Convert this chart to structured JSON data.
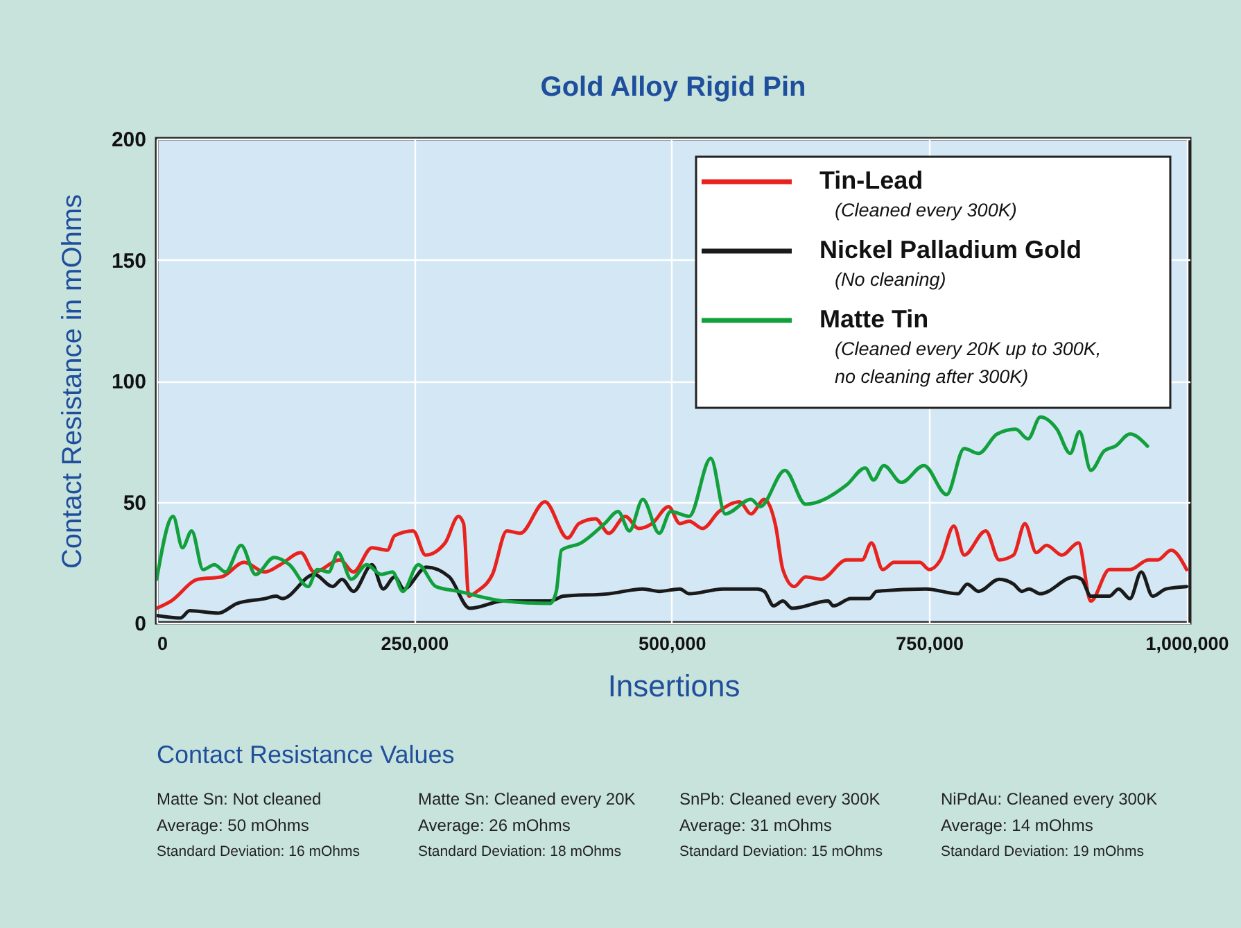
{
  "chart_data": {
    "type": "line",
    "title": "Gold Alloy Rigid Pin",
    "xlabel": "Insertions",
    "ylabel": "Contact Resistance in mOhms",
    "x": [
      0,
      14000,
      40000,
      63000,
      85000,
      105000,
      120000,
      140000,
      153000,
      178000,
      191000,
      209000,
      224000,
      231000,
      249000,
      261000,
      280000,
      293000,
      298000,
      303000,
      311000,
      326000,
      340000,
      353000,
      377000,
      399000,
      410000,
      426000,
      439000,
      455000,
      468000,
      481000,
      497000,
      508000,
      517000,
      530000,
      546000,
      566000,
      577000,
      590000,
      601000,
      608000,
      619000,
      630000,
      645000,
      670000,
      685000,
      694000,
      705000,
      716000,
      741000,
      750000,
      761000,
      774000,
      784000,
      805000,
      818000,
      832000,
      843000,
      854000,
      864000,
      879000,
      895000,
      907000,
      925000,
      945000,
      963000,
      972000,
      985000,
      1000000
    ],
    "series": [
      {
        "name": "Tin-Lead",
        "color": "#e8231e",
        "values": [
          6,
          9,
          18,
          19,
          25,
          21,
          24,
          29,
          21,
          26,
          21,
          31,
          30,
          36,
          38,
          28,
          33,
          44,
          41,
          11,
          13,
          20,
          38,
          37,
          50,
          35,
          41,
          43,
          37,
          44,
          39,
          41,
          48,
          41,
          42,
          39,
          46,
          50,
          45,
          51,
          40,
          22,
          15,
          19,
          18,
          26,
          26,
          33,
          22,
          25,
          25,
          22,
          26,
          40,
          28,
          38,
          26,
          28,
          41,
          29,
          32,
          28,
          33,
          9,
          22,
          22,
          26,
          26,
          30,
          22
        ]
      },
      {
        "name": "Nickel Palladium Gold",
        "color": "#1a1a1a",
        "x": [
          0,
          23000,
          32000,
          60000,
          78000,
          105000,
          116000,
          122000,
          153000,
          171000,
          180000,
          191000,
          209000,
          220000,
          231000,
          240000,
          262000,
          284000,
          304000,
          337000,
          382000,
          395000,
          439000,
          472000,
          488000,
          508000,
          517000,
          550000,
          583000,
          590000,
          599000,
          608000,
          617000,
          652000,
          657000,
          674000,
          692000,
          699000,
          747000,
          778000,
          787000,
          798000,
          818000,
          832000,
          840000,
          847000,
          858000,
          891000,
          898000,
          907000,
          925000,
          934000,
          945000,
          956000,
          967000,
          980000,
          1000000
        ],
        "values": [
          3,
          2,
          5,
          4,
          8,
          10,
          11,
          10,
          20,
          15,
          18,
          13,
          24,
          14,
          19,
          14,
          23,
          19,
          6,
          9,
          9,
          11,
          12,
          14,
          13,
          14,
          12,
          14,
          14,
          13,
          7,
          9,
          6,
          9,
          7,
          10,
          10,
          13,
          14,
          12,
          16,
          13,
          18,
          16,
          13,
          14,
          12,
          19,
          18,
          11,
          11,
          14,
          10,
          21,
          11,
          14,
          15
        ]
      },
      {
        "name": "Matte Tin",
        "color": "#12a03c",
        "x": [
          0,
          16000,
          25000,
          34000,
          45000,
          56000,
          67000,
          82000,
          96000,
          114000,
          129000,
          147000,
          156000,
          167000,
          176000,
          189000,
          204000,
          218000,
          229000,
          239000,
          254000,
          271000,
          293000,
          337000,
          382000,
          388000,
          393000,
          412000,
          435000,
          448000,
          459000,
          472000,
          488000,
          499000,
          517000,
          538000,
          552000,
          577000,
          586000,
          610000,
          630000,
          670000,
          688000,
          696000,
          706000,
          723000,
          745000,
          767000,
          784000,
          798000,
          816000,
          834000,
          846000,
          858000,
          874000,
          887000,
          896000,
          907000,
          920000,
          931000,
          945000,
          962000
        ],
        "values": [
          18,
          44,
          31,
          38,
          22,
          24,
          21,
          32,
          20,
          27,
          24,
          15,
          22,
          21,
          29,
          18,
          24,
          20,
          21,
          13,
          24,
          15,
          13,
          9,
          8,
          13,
          30,
          33,
          41,
          46,
          38,
          51,
          37,
          46,
          44,
          68,
          45,
          51,
          48,
          63,
          49,
          57,
          64,
          59,
          65,
          58,
          65,
          53,
          72,
          70,
          78,
          80,
          76,
          85,
          80,
          70,
          79,
          63,
          71,
          73,
          78,
          73
        ]
      }
    ],
    "xlim": [
      0,
      1003000
    ],
    "xticks": [
      0,
      {
        "value": 250000,
        "label": "250,000"
      },
      {
        "value": 500000,
        "label": "500,000"
      },
      {
        "value": 750000,
        "label": "750,000"
      },
      {
        "value": 1000000,
        "label": "1,000,000"
      }
    ],
    "ylim": [
      0,
      200
    ],
    "yticks": [
      0,
      50,
      100,
      150,
      200
    ],
    "grid": true,
    "legend": "top right",
    "annotations": [
      "(Cleaned every 300K)",
      "(No cleaning)",
      "(Cleaned every 20K up to 300K,\n no cleaning after 300K)",
      "Contact Resistance Values",
      "Matte Sn: Not cleaned",
      "Average: 50 mOhms",
      "Standard Deviation: 16 mOhms",
      "Matte Sn: Cleaned every 20K",
      "Average: 26 mOhms",
      "Standard Deviation: 18 mOhms",
      "SnPb: Cleaned every 300K",
      "Average: 31 mOhms",
      "Standard Deviation: 15 mOhms",
      "NiPdAu: Cleaned every 300K",
      "Average: 14 mOhms",
      "Standard Deviation: 19 mOhms"
    ]
  }
}
